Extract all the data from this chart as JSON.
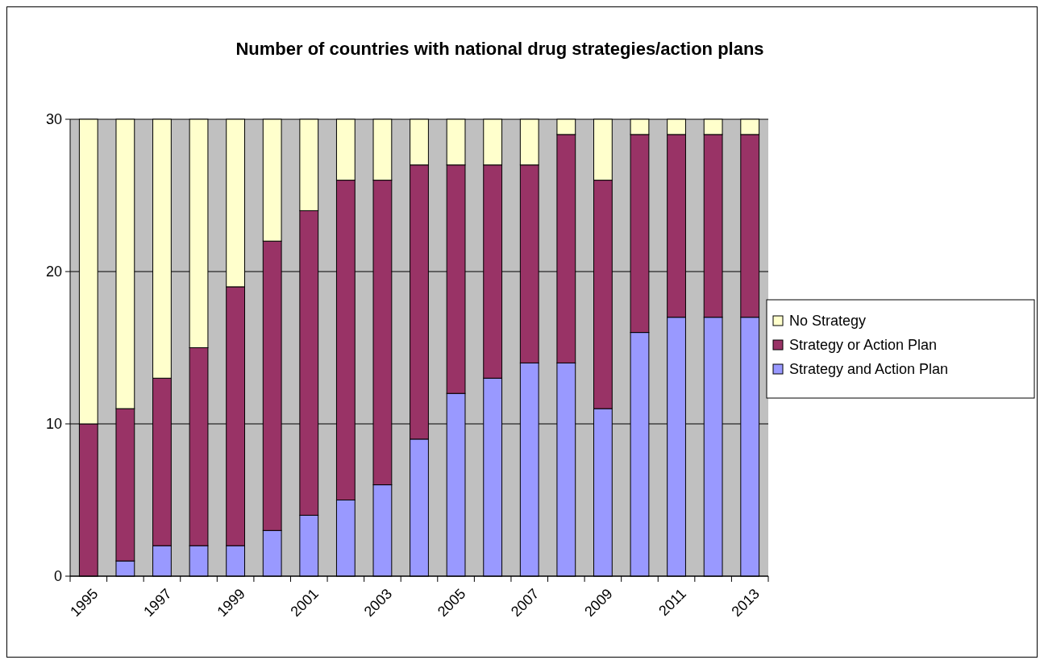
{
  "chart_data": {
    "type": "bar",
    "title": "Number of countries with national drug strategies/action plans",
    "categories": [
      "1995",
      null,
      "1997",
      null,
      "1999",
      null,
      "2001",
      null,
      "2003",
      null,
      "2005",
      null,
      "2007",
      null,
      "2009",
      null,
      "2011",
      null,
      "2013"
    ],
    "stacked": true,
    "ylim": [
      0,
      30
    ],
    "yticks": [
      0,
      10,
      20,
      30
    ],
    "grid": "y",
    "legend": "right",
    "series": [
      {
        "name": "Strategy and Action Plan",
        "color": "#9999ff",
        "values": [
          0,
          1,
          2,
          2,
          2,
          3,
          4,
          5,
          6,
          9,
          12,
          13,
          14,
          14,
          11,
          16,
          17,
          17,
          17
        ]
      },
      {
        "name": "Strategy or Action Plan",
        "color": "#993366",
        "values": [
          10,
          10,
          11,
          13,
          17,
          19,
          20,
          21,
          20,
          18,
          15,
          14,
          13,
          15,
          15,
          13,
          12,
          12,
          12
        ]
      },
      {
        "name": "No Strategy",
        "color": "#ffffcc",
        "values": [
          20,
          19,
          17,
          15,
          11,
          8,
          6,
          4,
          4,
          3,
          3,
          3,
          3,
          1,
          4,
          1,
          1,
          1,
          1
        ]
      }
    ]
  }
}
